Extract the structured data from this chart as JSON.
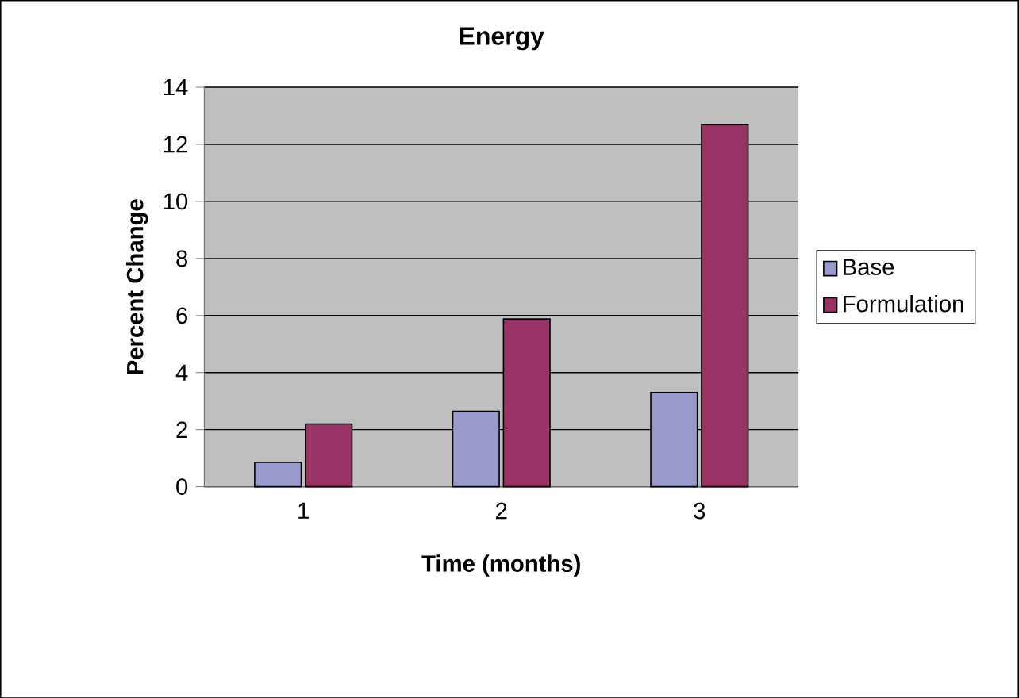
{
  "chart_data": {
    "type": "bar",
    "title": "Energy",
    "xlabel": "Time (months)",
    "ylabel": "Percent Change",
    "categories": [
      "1",
      "2",
      "3"
    ],
    "series": [
      {
        "name": "Base",
        "color": "#9999cc",
        "values": [
          0.85,
          2.64,
          3.3
        ]
      },
      {
        "name": "Formulation",
        "color": "#993366",
        "values": [
          2.2,
          5.88,
          12.7
        ]
      }
    ],
    "ylim": [
      0,
      14
    ],
    "yticks": [
      0,
      2,
      4,
      6,
      8,
      10,
      12,
      14
    ],
    "grid": "y",
    "legend": "right"
  }
}
